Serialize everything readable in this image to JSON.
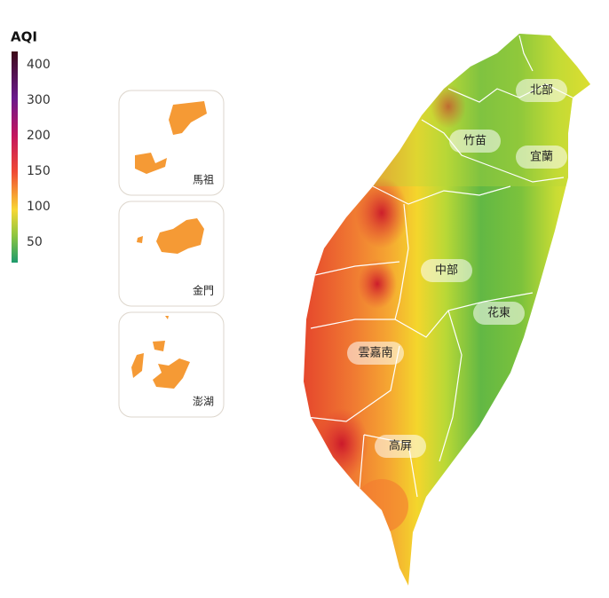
{
  "legend": {
    "title": "AQI",
    "ticks": [
      400,
      300,
      200,
      150,
      100,
      50
    ]
  },
  "insets": [
    {
      "label": "馬祖"
    },
    {
      "label": "金門"
    },
    {
      "label": "澎湖"
    }
  ],
  "regions": [
    {
      "label": "北部"
    },
    {
      "label": "竹苗"
    },
    {
      "label": "宜蘭"
    },
    {
      "label": "中部"
    },
    {
      "label": "花東"
    },
    {
      "label": "雲嘉南"
    },
    {
      "label": "高屏"
    }
  ]
}
